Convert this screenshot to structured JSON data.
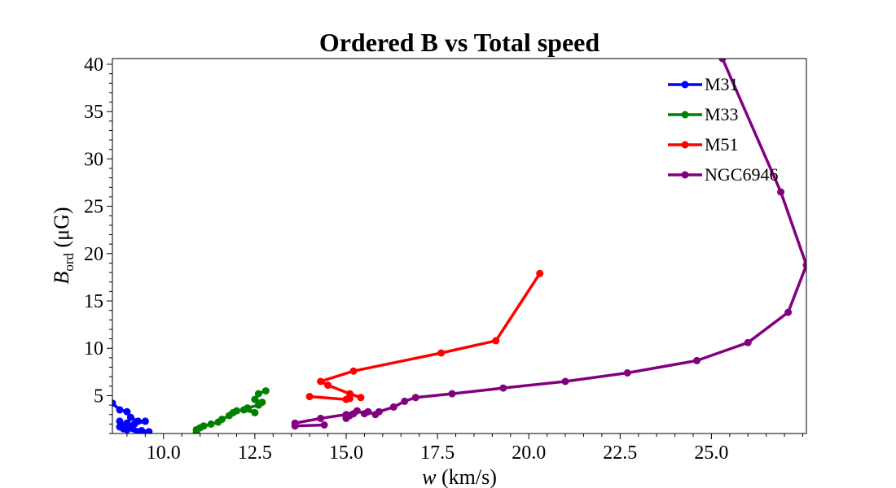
{
  "chart_data": {
    "type": "line",
    "title": "Ordered B vs Total speed",
    "xlabel_var": "w",
    "xlabel_unit": " (km/s)",
    "ylabel_var": "B",
    "ylabel_sub": "ord",
    "ylabel_unit": " (μG)",
    "xlim": [
      8.6,
      27.6
    ],
    "ylim": [
      1.0,
      40.6
    ],
    "x_ticks": [
      10.0,
      12.5,
      15.0,
      17.5,
      20.0,
      22.5,
      25.0
    ],
    "x_tick_labels": [
      "10.0",
      "12.5",
      "15.0",
      "17.5",
      "20.0",
      "22.5",
      "25.0"
    ],
    "y_ticks": [
      5,
      10,
      15,
      20,
      25,
      30,
      35,
      40
    ],
    "y_tick_labels": [
      "5",
      "10",
      "15",
      "20",
      "25",
      "30",
      "35",
      "40"
    ],
    "legend_position": "upper-right",
    "series": [
      {
        "name": "M31",
        "color": "#0000ff",
        "points": [
          [
            8.6,
            4.2
          ],
          [
            8.8,
            3.5
          ],
          [
            9.0,
            3.3
          ],
          [
            9.1,
            2.7
          ],
          [
            9.3,
            2.3
          ],
          [
            9.5,
            2.3
          ],
          [
            9.2,
            2.0
          ],
          [
            8.9,
            1.8
          ],
          [
            8.8,
            2.3
          ],
          [
            8.9,
            1.5
          ],
          [
            9.0,
            1.4
          ],
          [
            8.8,
            1.7
          ],
          [
            9.0,
            2.1
          ],
          [
            9.1,
            1.6
          ],
          [
            9.4,
            1.3
          ],
          [
            9.6,
            1.2
          ],
          [
            9.3,
            1.1
          ],
          [
            9.0,
            1.5
          ]
        ]
      },
      {
        "name": "M33",
        "color": "#008000",
        "points": [
          [
            10.9,
            1.1
          ],
          [
            10.9,
            1.4
          ],
          [
            11.0,
            1.6
          ],
          [
            11.1,
            1.8
          ],
          [
            11.3,
            2.0
          ],
          [
            11.5,
            2.2
          ],
          [
            11.6,
            2.5
          ],
          [
            11.8,
            2.9
          ],
          [
            11.9,
            3.2
          ],
          [
            12.0,
            3.4
          ],
          [
            12.2,
            3.5
          ],
          [
            12.5,
            3.2
          ],
          [
            12.3,
            3.7
          ],
          [
            12.6,
            4.0
          ],
          [
            12.7,
            4.3
          ],
          [
            12.5,
            4.6
          ],
          [
            12.6,
            5.2
          ],
          [
            12.8,
            5.5
          ]
        ]
      },
      {
        "name": "M51",
        "color": "#ff0000",
        "points": [
          [
            15.4,
            4.8
          ],
          [
            15.1,
            5.2
          ],
          [
            14.5,
            6.1
          ],
          [
            14.3,
            6.5
          ],
          [
            15.2,
            7.6
          ],
          [
            17.6,
            9.5
          ],
          [
            19.1,
            10.8
          ],
          [
            20.3,
            17.9
          ],
          null,
          [
            14.0,
            4.9
          ],
          [
            15.0,
            4.6
          ],
          [
            15.1,
            4.7
          ]
        ]
      },
      {
        "name": "NGC6946",
        "color": "#800080",
        "points": [
          [
            14.4,
            1.9
          ],
          [
            13.6,
            1.8
          ],
          [
            13.6,
            2.1
          ],
          [
            14.3,
            2.6
          ],
          [
            15.0,
            3.0
          ],
          [
            15.3,
            3.4
          ],
          [
            15.5,
            3.1
          ],
          [
            15.6,
            3.3
          ],
          [
            15.8,
            3.0
          ],
          [
            15.9,
            3.3
          ],
          [
            16.3,
            3.8
          ],
          [
            16.6,
            4.4
          ],
          [
            16.9,
            4.8
          ],
          [
            17.9,
            5.2
          ],
          [
            19.3,
            5.8
          ],
          [
            21.0,
            6.5
          ],
          [
            22.7,
            7.4
          ],
          [
            24.6,
            8.7
          ],
          [
            26.0,
            10.6
          ],
          [
            27.1,
            13.8
          ],
          [
            27.6,
            18.8
          ],
          [
            26.9,
            26.5
          ],
          [
            25.3,
            40.6
          ],
          null,
          [
            15.0,
            2.7
          ],
          [
            15.1,
            2.9
          ],
          [
            15.2,
            3.1
          ],
          [
            15.0,
            2.6
          ]
        ]
      }
    ]
  }
}
